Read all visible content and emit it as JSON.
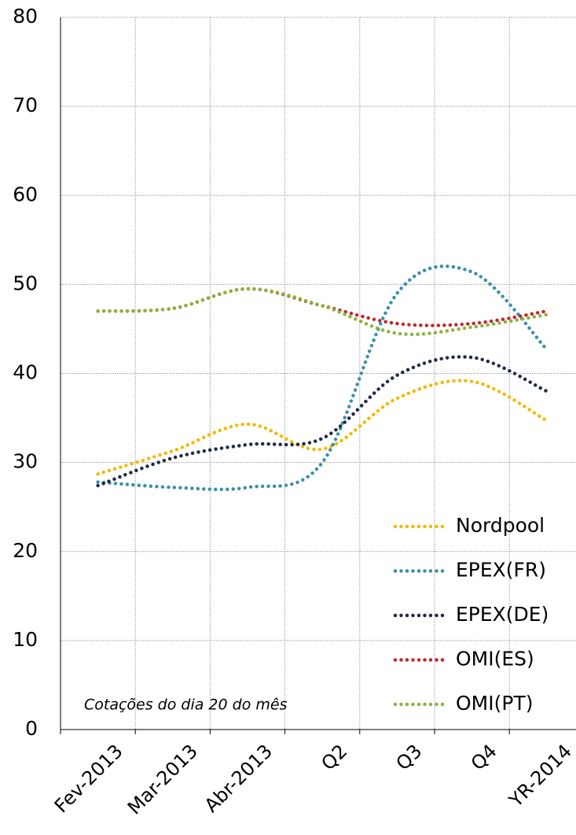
{
  "chart_data": {
    "type": "line",
    "categories": [
      "Fev-2013",
      "Mar-2013",
      "Abr-2013",
      "Q2",
      "Q3",
      "Q4",
      "YR-2014"
    ],
    "series": [
      {
        "name": "Nordpool",
        "color": "#f5b800",
        "values": [
          28.7,
          31.3,
          34.3,
          31.5,
          37.2,
          39.1,
          34.7
        ]
      },
      {
        "name": "EPEX(FR)",
        "color": "#3a8fa8",
        "values": [
          27.8,
          27.2,
          27.2,
          30.0,
          49.0,
          51.4,
          42.7
        ]
      },
      {
        "name": "EPEX(DE)",
        "color": "#1f2a44",
        "values": [
          27.4,
          30.5,
          32.0,
          32.7,
          39.8,
          41.8,
          38.0
        ]
      },
      {
        "name": "OMI(ES)",
        "color": "#c0282d",
        "values": [
          47.0,
          47.3,
          49.5,
          47.6,
          45.6,
          45.6,
          47.0
        ]
      },
      {
        "name": "OMI(PT)",
        "color": "#8cb23c",
        "values": [
          47.0,
          47.3,
          49.5,
          47.6,
          44.5,
          45.2,
          46.6
        ]
      }
    ],
    "annotation": "Cotações do dia 20 do mês",
    "ylim": [
      0,
      80
    ],
    "yticks": [
      0,
      10,
      20,
      30,
      40,
      50,
      60,
      70,
      80
    ],
    "grid": true,
    "legend": "lower right"
  }
}
